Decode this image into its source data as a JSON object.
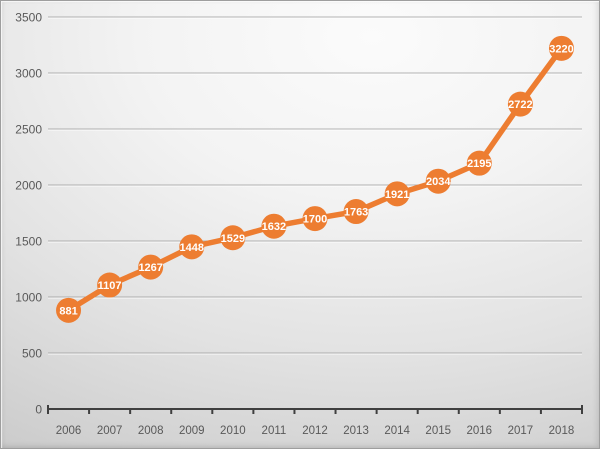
{
  "chart_data": {
    "type": "line",
    "title": "",
    "xlabel": "",
    "ylabel": "",
    "categories": [
      "2006",
      "2007",
      "2008",
      "2009",
      "2010",
      "2011",
      "2012",
      "2013",
      "2014",
      "2015",
      "2016",
      "2017",
      "2018"
    ],
    "values": [
      881,
      1107,
      1267,
      1448,
      1529,
      1632,
      1700,
      1763,
      1921,
      2034,
      2195,
      2722,
      3220
    ],
    "ylim": [
      0,
      3500
    ],
    "yticks": [
      0,
      500,
      1000,
      1500,
      2000,
      2500,
      3000,
      3500
    ],
    "grid": true,
    "legend": false,
    "data_label_position": "center",
    "colors": {
      "line": "#ED7D31",
      "marker": "#ED7D31",
      "data_label_text": "#FFFFFF",
      "axis_text": "#595959",
      "axis_line": "#3f3f3f",
      "gridline": "#9a9a9a",
      "gridline_highlight": "#FFFFFF"
    }
  }
}
